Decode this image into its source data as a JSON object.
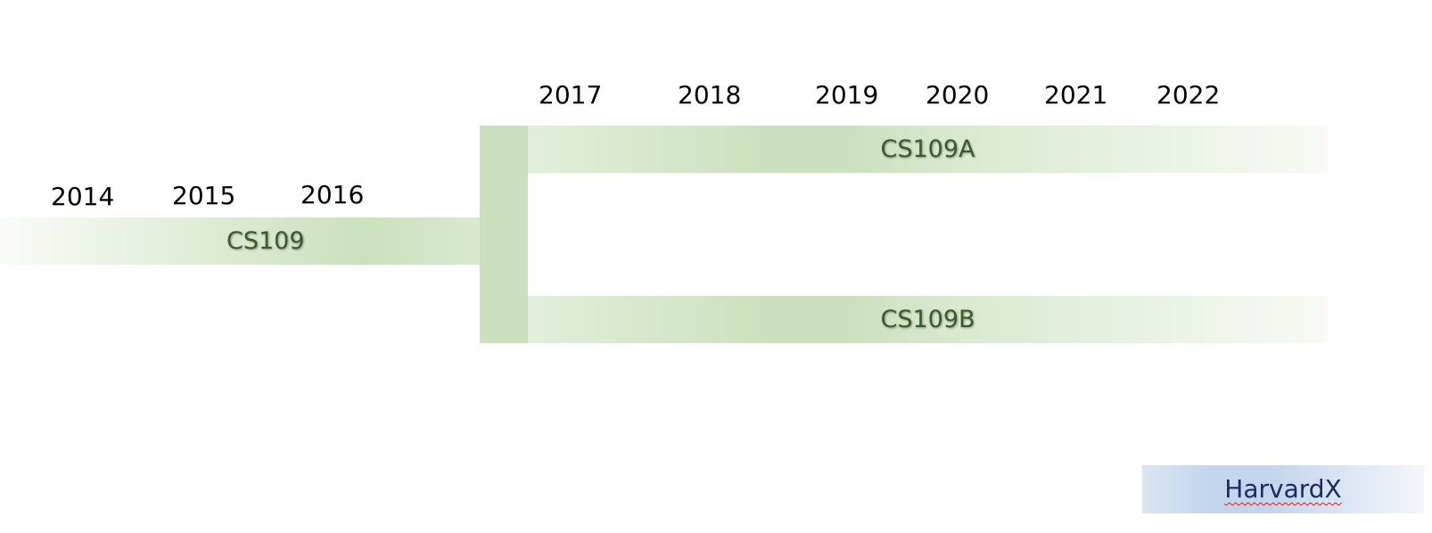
{
  "years_top": [
    "2017",
    "2018",
    "2019",
    "2020",
    "2021",
    "2022"
  ],
  "years_left": [
    "2014",
    "2015",
    "2016"
  ],
  "bands": {
    "cs109": "CS109",
    "cs109a": "CS109A",
    "cs109b": "CS109B"
  },
  "logo_text": "HarvardX",
  "colors": {
    "band_green": "#cbe1bd",
    "band_label": "#3e5a2c",
    "harvardx_blue": "#c3d5ec",
    "harvardx_text": "#1c2a63",
    "year_text": "#000000"
  }
}
